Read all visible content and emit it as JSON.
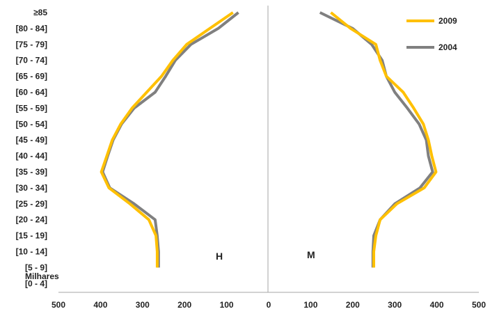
{
  "chart_data": {
    "type": "line",
    "title": "",
    "y_categories": [
      "[0 - 4]",
      "[5 - 9]",
      "[10 - 14]",
      "[15 - 19]",
      "[20 - 24]",
      "[25 - 29]",
      "[30 - 34]",
      "[35 - 39]",
      "[40 - 44]",
      "[45 - 49]",
      "[50 - 54]",
      "[55 - 59]",
      "[60 - 64]",
      "[65 - 69]",
      "[70 - 74]",
      "[75 - 79]",
      "[80 - 84]",
      "≥85"
    ],
    "x_ticks": [
      "500",
      "400",
      "300",
      "200",
      "100",
      "0",
      "100",
      "200",
      "300",
      "400",
      "500"
    ],
    "x_tick_colors": [
      "#ff0000",
      "#ff0000",
      "#ff0000",
      "#ff0000",
      "#ff0000",
      "#222222",
      "#222222",
      "#222222",
      "#222222",
      "#222222",
      "#222222"
    ],
    "xlim": [
      -500,
      500
    ],
    "unit_label": "Milhares",
    "left_label": "H",
    "right_label": "M",
    "grid": false,
    "legend_position": "top-right",
    "series": [
      {
        "name": "2009",
        "color": "#ffc000",
        "points_from": "[5 - 9]",
        "male": [
          265,
          265,
          268,
          285,
          330,
          380,
          398,
          385,
          372,
          352,
          325,
          290,
          255,
          228,
          195,
          140,
          85
        ],
        "female": [
          250,
          250,
          255,
          265,
          305,
          370,
          398,
          388,
          380,
          368,
          345,
          320,
          280,
          265,
          255,
          195,
          148
        ]
      },
      {
        "name": "2004",
        "color": "#808080",
        "points_from": "[5 - 9]",
        "male": [
          262,
          262,
          265,
          270,
          320,
          378,
          395,
          383,
          370,
          350,
          320,
          270,
          245,
          222,
          185,
          120,
          72
        ],
        "female": [
          248,
          248,
          250,
          265,
          300,
          360,
          390,
          380,
          375,
          358,
          330,
          300,
          280,
          270,
          245,
          200,
          122
        ]
      }
    ]
  }
}
